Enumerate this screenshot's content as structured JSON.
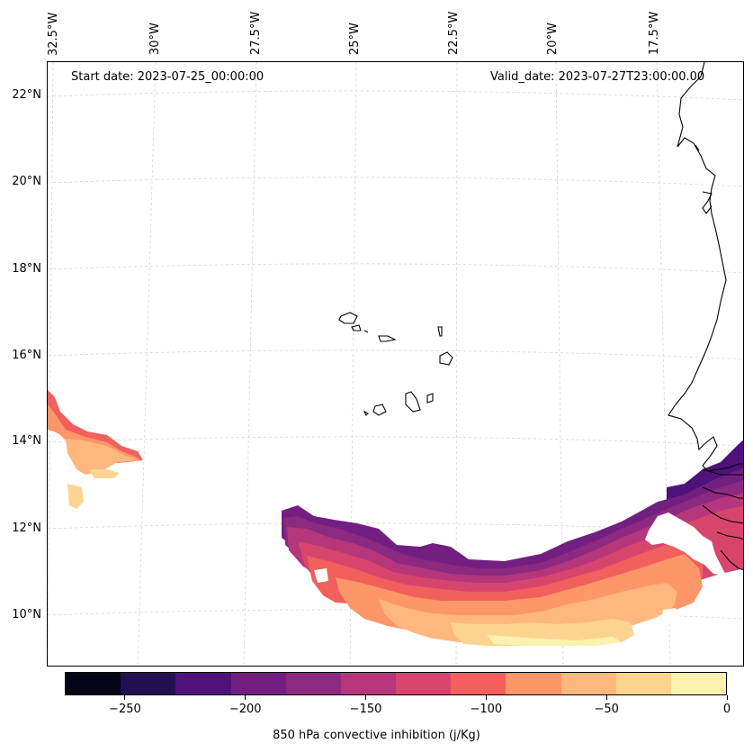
{
  "map": {
    "projection_note": "Lambert conformal",
    "lon_labels": [
      "32.5°W",
      "30°W",
      "27.5°W",
      "25°W",
      "22.5°W",
      "20°W",
      "17.5°W"
    ],
    "lat_labels": [
      "22°N",
      "20°N",
      "18°N",
      "16°N",
      "14°N",
      "12°N",
      "10°N"
    ],
    "start_date": "Start date: 2023-07-25_00:00:00",
    "valid_date": "Valid_date: 2023-07-27T23:00:00.00",
    "field_colors": {
      "c_150": "#b5367a",
      "c_125": "#d8456c",
      "c_100": "#f1605d",
      "c_75": "#fd9668",
      "c_50": "#feb77e",
      "c_25": "#fcd490",
      "c_0": "#fcf2b0",
      "c_200": "#721f81",
      "c_175": "#8c2981",
      "c_225": "#4f127b"
    },
    "coastline_color": "#000000"
  },
  "colorbar": {
    "tick_labels": [
      "−250",
      "−200",
      "−150",
      "−100",
      "−50",
      "0"
    ],
    "label": "850 hPa convective inhibition (j/Kg)",
    "vmin": -275,
    "vmax": 0,
    "tick_values": [
      -250,
      -200,
      -150,
      -100,
      -50,
      0
    ],
    "colors": [
      "#050416",
      "#221150",
      "#4f127b",
      "#721f81",
      "#8c2981",
      "#b5367a",
      "#d8456c",
      "#f1605d",
      "#fd9668",
      "#feb77e",
      "#fcd490",
      "#fcf2b0"
    ]
  }
}
